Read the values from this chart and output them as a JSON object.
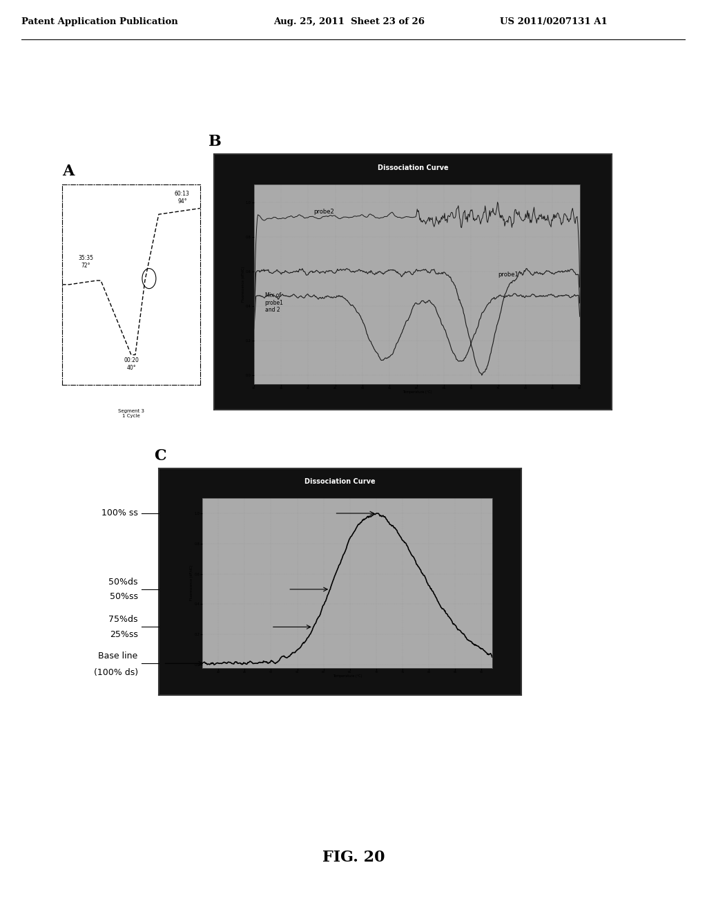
{
  "header_left": "Patent Application Publication",
  "header_mid": "Aug. 25, 2011  Sheet 23 of 26",
  "header_right": "US 2011/0207131 A1",
  "label_A": "A",
  "label_B": "B",
  "label_C": "C",
  "fig_label": "FIG. 20",
  "bg_color": "#ffffff",
  "panel_dark_bg": "#111111",
  "panel_plot_bg": "#c8c8c8",
  "title_B": "Dissociation Curve",
  "title_C": "Dissociation Curve",
  "ann_pcr": [
    "60:13\n94°",
    "35:35\n72°",
    "00:20\n40°"
  ]
}
